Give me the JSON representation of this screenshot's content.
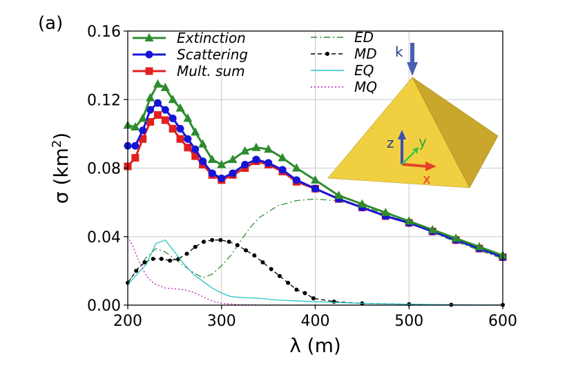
{
  "chart_data": {
    "type": "line",
    "panel_label": "(a)",
    "xlabel": "λ (m)",
    "ylabel_main": "σ (km",
    "ylabel_sup": "2",
    "ylabel_close": ")",
    "xlim": [
      200,
      600
    ],
    "ylim": [
      0,
      0.16
    ],
    "x_ticks": [
      200,
      300,
      400,
      500,
      600
    ],
    "x_tick_labels": [
      "200",
      "300",
      "400",
      "500",
      "600"
    ],
    "y_ticks": [
      0,
      0.04,
      0.08,
      0.12,
      0.16
    ],
    "y_tick_labels": [
      "0.00",
      "0.04",
      "0.08",
      "0.12",
      "0.16"
    ],
    "grid": true,
    "legend_placement": "top",
    "series": [
      {
        "name": "Extinction",
        "color": "#2e8b2e",
        "marker": "triangle",
        "style": "solid",
        "width": 3,
        "x": [
          200,
          208,
          216,
          224,
          232,
          240,
          248,
          256,
          264,
          272,
          280,
          290,
          300,
          312,
          325,
          337,
          350,
          365,
          380,
          400,
          425,
          450,
          475,
          500,
          525,
          550,
          575,
          600
        ],
        "y": [
          0.105,
          0.104,
          0.109,
          0.121,
          0.129,
          0.127,
          0.12,
          0.115,
          0.109,
          0.101,
          0.094,
          0.085,
          0.082,
          0.085,
          0.09,
          0.092,
          0.091,
          0.086,
          0.08,
          0.073,
          0.064,
          0.059,
          0.054,
          0.049,
          0.044,
          0.039,
          0.034,
          0.029
        ]
      },
      {
        "name": "Scattering",
        "color": "#1515d8",
        "marker": "circle",
        "style": "solid",
        "width": 3,
        "x": [
          200,
          208,
          216,
          224,
          232,
          240,
          248,
          256,
          264,
          272,
          280,
          290,
          300,
          312,
          325,
          337,
          350,
          365,
          380,
          400,
          425,
          450,
          475,
          500,
          525,
          550,
          575,
          600
        ],
        "y": [
          0.093,
          0.093,
          0.102,
          0.114,
          0.118,
          0.114,
          0.109,
          0.103,
          0.097,
          0.091,
          0.084,
          0.077,
          0.074,
          0.077,
          0.082,
          0.085,
          0.083,
          0.079,
          0.073,
          0.068,
          0.062,
          0.057,
          0.052,
          0.048,
          0.043,
          0.038,
          0.033,
          0.028
        ]
      },
      {
        "name": "Mult. sum",
        "color": "#e02020",
        "marker": "square",
        "style": "solid",
        "width": 3,
        "x": [
          200,
          208,
          216,
          224,
          232,
          240,
          248,
          256,
          264,
          272,
          280,
          290,
          300,
          312,
          325,
          337,
          350,
          365,
          380,
          400,
          425,
          450,
          475,
          500,
          525,
          550,
          575,
          600
        ],
        "y": [
          0.081,
          0.086,
          0.097,
          0.107,
          0.111,
          0.108,
          0.103,
          0.097,
          0.092,
          0.087,
          0.082,
          0.076,
          0.073,
          0.076,
          0.08,
          0.084,
          0.082,
          0.078,
          0.072,
          0.068,
          0.062,
          0.057,
          0.052,
          0.048,
          0.043,
          0.038,
          0.033,
          0.028
        ]
      },
      {
        "name": "ED",
        "color": "#2e8b2e",
        "marker": "none",
        "style": "dashdot",
        "width": 1.3,
        "x": [
          200,
          210,
          220,
          230,
          240,
          250,
          260,
          270,
          280,
          290,
          300,
          310,
          320,
          330,
          340,
          360,
          380,
          400,
          420,
          440,
          460,
          480,
          500,
          520,
          540,
          560,
          580,
          600
        ],
        "y": [
          0.013,
          0.021,
          0.028,
          0.033,
          0.031,
          0.027,
          0.023,
          0.019,
          0.016,
          0.018,
          0.023,
          0.029,
          0.037,
          0.045,
          0.051,
          0.058,
          0.061,
          0.062,
          0.061,
          0.059,
          0.056,
          0.052,
          0.048,
          0.044,
          0.039,
          0.035,
          0.031,
          0.027
        ]
      },
      {
        "name": "MD",
        "color": "#000000",
        "marker": "dot",
        "style": "dashed",
        "width": 1.3,
        "x": [
          200,
          209,
          218,
          227,
          236,
          245,
          254,
          263,
          272,
          281,
          290,
          299,
          308,
          317,
          326,
          335,
          344,
          353,
          362,
          371,
          380,
          389,
          398,
          420,
          450,
          500,
          545,
          600
        ],
        "y": [
          0.013,
          0.02,
          0.025,
          0.027,
          0.027,
          0.026,
          0.027,
          0.03,
          0.034,
          0.037,
          0.038,
          0.038,
          0.037,
          0.035,
          0.032,
          0.029,
          0.025,
          0.021,
          0.017,
          0.013,
          0.009,
          0.007,
          0.004,
          0.002,
          0.001,
          0.0005,
          0.0002,
          0.0001
        ]
      },
      {
        "name": "EQ",
        "color": "#26c4c4",
        "marker": "none",
        "style": "solid",
        "width": 1.3,
        "x": [
          200,
          210,
          220,
          230,
          240,
          250,
          260,
          270,
          280,
          290,
          300,
          310,
          320,
          340,
          360,
          380,
          400,
          450,
          500,
          550,
          600
        ],
        "y": [
          0.012,
          0.018,
          0.024,
          0.036,
          0.038,
          0.031,
          0.024,
          0.018,
          0.014,
          0.01,
          0.007,
          0.005,
          0.0045,
          0.004,
          0.003,
          0.0025,
          0.002,
          0.001,
          0.0005,
          0.0002,
          0.0001
        ]
      },
      {
        "name": "MQ",
        "color": "#b020b0",
        "marker": "none",
        "style": "dotted",
        "width": 1.3,
        "x": [
          200,
          205,
          210,
          215,
          220,
          225,
          230,
          240,
          250,
          260,
          270,
          280,
          290,
          300,
          320,
          350,
          400,
          450,
          500,
          600
        ],
        "y": [
          0.04,
          0.035,
          0.028,
          0.022,
          0.017,
          0.014,
          0.012,
          0.01,
          0.0095,
          0.009,
          0.0075,
          0.005,
          0.0025,
          0.001,
          0.0003,
          0.0001,
          0.0,
          0.0,
          0.0,
          0.0
        ]
      }
    ],
    "inset": {
      "incident_label": "k",
      "axis_labels": [
        "z",
        "y",
        "x"
      ],
      "colors": {
        "pyramid_light": "#f0d040",
        "pyramid_mid": "#e6c43a",
        "pyramid_dark": "#c9a62c",
        "arrow_k": "#4a5fb0"
      }
    }
  }
}
